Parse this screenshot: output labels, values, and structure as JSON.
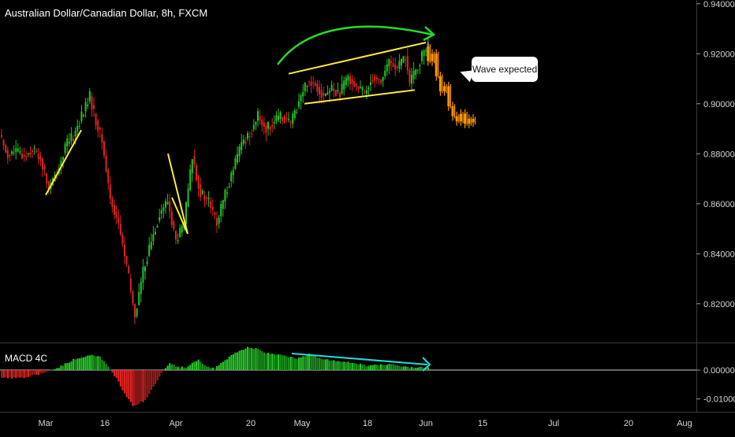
{
  "title": "Australian Dollar/Canadian Dollar, 8h, FXCM",
  "callout_text": "Wave expected",
  "chart_data": [
    {
      "type": "candlestick",
      "title": "Australian Dollar/Canadian Dollar, 8h, FXCM",
      "y_ticks": [
        "0.94000",
        "0.92000",
        "0.90000",
        "0.88000",
        "0.86000",
        "0.84000",
        "0.82000"
      ],
      "y_tick_values": [
        0.94,
        0.92,
        0.9,
        0.88,
        0.86,
        0.84,
        0.82
      ],
      "ylim": [
        0.8045,
        0.9415
      ],
      "x_ticks": [
        "Mar",
        "16",
        "Apr",
        "20",
        "May",
        "18",
        "Jun",
        "15",
        "Jul",
        "20",
        "Aug"
      ],
      "colors": {
        "up": "#26c326",
        "down": "#e02424",
        "projection": "#ff9800",
        "trend": "#ffeb3b",
        "arc": "#22e022"
      },
      "price_path": [
        [
          0,
          0.8875
        ],
        [
          2,
          0.8795
        ],
        [
          4,
          0.881
        ],
        [
          6,
          0.879
        ],
        [
          8,
          0.882
        ],
        [
          10,
          0.878
        ],
        [
          12,
          0.866
        ],
        [
          14,
          0.872
        ],
        [
          16,
          0.883
        ],
        [
          18,
          0.887
        ],
        [
          20,
          0.895
        ],
        [
          22,
          0.903
        ],
        [
          23,
          0.896
        ],
        [
          25,
          0.885
        ],
        [
          27,
          0.862
        ],
        [
          29,
          0.852
        ],
        [
          31,
          0.835
        ],
        [
          33,
          0.815
        ],
        [
          35,
          0.833
        ],
        [
          37,
          0.845
        ],
        [
          39,
          0.856
        ],
        [
          41,
          0.861
        ],
        [
          43,
          0.845
        ],
        [
          45,
          0.852
        ],
        [
          47,
          0.879
        ],
        [
          49,
          0.864
        ],
        [
          51,
          0.861
        ],
        [
          53,
          0.852
        ],
        [
          55,
          0.864
        ],
        [
          57,
          0.874
        ],
        [
          59,
          0.884
        ],
        [
          61,
          0.888
        ],
        [
          63,
          0.895
        ],
        [
          65,
          0.89
        ],
        [
          67,
          0.893
        ],
        [
          69,
          0.895
        ],
        [
          71,
          0.892
        ],
        [
          73,
          0.901
        ],
        [
          75,
          0.909
        ],
        [
          77,
          0.908
        ],
        [
          79,
          0.903
        ],
        [
          81,
          0.906
        ],
        [
          83,
          0.904
        ],
        [
          85,
          0.911
        ],
        [
          87,
          0.907
        ],
        [
          89,
          0.904
        ],
        [
          91,
          0.911
        ],
        [
          93,
          0.909
        ],
        [
          95,
          0.917
        ],
        [
          97,
          0.914
        ],
        [
          99,
          0.919
        ],
        [
          100,
          0.908
        ],
        [
          102,
          0.915
        ],
        [
          104,
          0.923
        ]
      ],
      "projection_path": [
        [
          104,
          0.923
        ],
        [
          105,
          0.917
        ],
        [
          106,
          0.92
        ],
        [
          107,
          0.911
        ],
        [
          108,
          0.905
        ],
        [
          109,
          0.907
        ],
        [
          110,
          0.899
        ],
        [
          111,
          0.895
        ],
        [
          112,
          0.893
        ],
        [
          113,
          0.896
        ],
        [
          114,
          0.892
        ],
        [
          115,
          0.894
        ],
        [
          116,
          0.8925
        ]
      ]
    },
    {
      "type": "bar",
      "title": "MACD 4C",
      "y_ticks": [
        "0.00000",
        "-0.01000"
      ],
      "y_tick_values": [
        0.0,
        -0.01
      ],
      "ylim": [
        -0.0142,
        0.0093
      ],
      "colors": {
        "up": "#26c326",
        "down": "#e02424",
        "divergence": "#26d9e0"
      },
      "histogram": [
        [
          0,
          -0.0028
        ],
        [
          6,
          -0.0026
        ],
        [
          10,
          -0.001
        ],
        [
          14,
          0.001
        ],
        [
          18,
          0.004
        ],
        [
          22,
          0.0055
        ],
        [
          24,
          0.0045
        ],
        [
          26,
          0.001
        ],
        [
          28,
          -0.003
        ],
        [
          30,
          -0.008
        ],
        [
          32,
          -0.0125
        ],
        [
          35,
          -0.0105
        ],
        [
          37,
          -0.006
        ],
        [
          39,
          -0.0012
        ],
        [
          41,
          0.0025
        ],
        [
          43,
          0.001
        ],
        [
          45,
          0.001
        ],
        [
          48,
          0.0035
        ],
        [
          50,
          0.001
        ],
        [
          52,
          0.0005
        ],
        [
          54,
          0.003
        ],
        [
          57,
          0.006
        ],
        [
          60,
          0.008
        ],
        [
          62,
          0.0075
        ],
        [
          64,
          0.006
        ],
        [
          67,
          0.0055
        ],
        [
          70,
          0.0045
        ],
        [
          72,
          0.004
        ],
        [
          75,
          0.0055
        ],
        [
          77,
          0.0045
        ],
        [
          80,
          0.0035
        ],
        [
          83,
          0.003
        ],
        [
          86,
          0.0025
        ],
        [
          89,
          0.0015
        ],
        [
          92,
          0.0018
        ],
        [
          95,
          0.002
        ],
        [
          98,
          0.0012
        ],
        [
          101,
          0.0008
        ],
        [
          104,
          0.001
        ]
      ]
    }
  ]
}
